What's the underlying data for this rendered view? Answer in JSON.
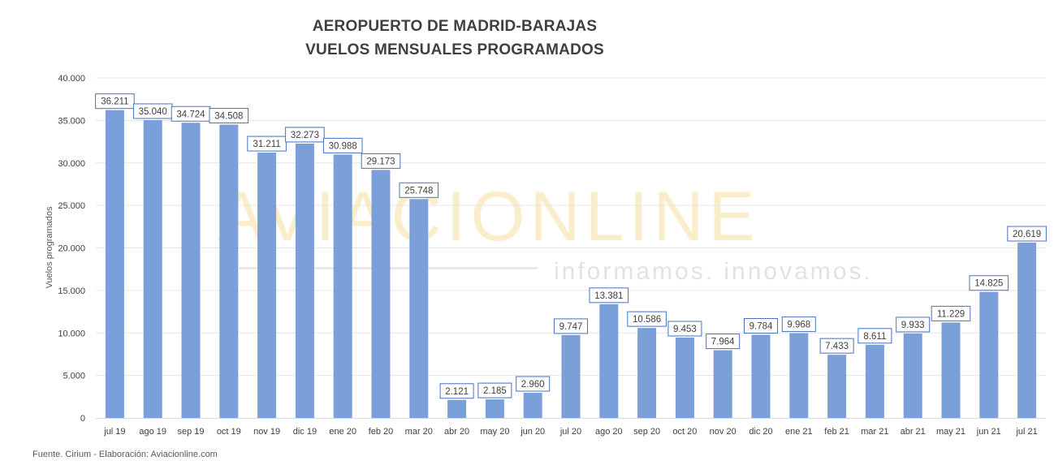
{
  "title": [
    "AEROPUERTO DE MADRID-BARAJAS",
    "VUELOS MENSUALES PROGRAMADOS"
  ],
  "source": "Fuente. Cirium - Elaboración: Aviacionline.com",
  "watermark": {
    "name": "AVIACIONLINE",
    "tagline": "informamos. innovamos."
  },
  "colors": {
    "bar": "#7b9fd8",
    "label_border": "#4472c4",
    "label_text": "#404040",
    "grid": "#e6e6e6",
    "axis_text": "#404040"
  },
  "chart_data": {
    "type": "bar",
    "ylabel": "Vuelos programados",
    "ylim": [
      0,
      40000
    ],
    "yticks": [
      0,
      5000,
      10000,
      15000,
      20000,
      25000,
      30000,
      35000,
      40000
    ],
    "ytick_labels": [
      "0",
      "5.000",
      "10.000",
      "15.000",
      "20.000",
      "25.000",
      "30.000",
      "35.000",
      "40.000"
    ],
    "grid": true,
    "categories": [
      "jul 19",
      "ago 19",
      "sep 19",
      "oct 19",
      "nov 19",
      "dic 19",
      "ene 20",
      "feb 20",
      "mar 20",
      "abr 20",
      "may 20",
      "jun 20",
      "jul 20",
      "ago 20",
      "sep 20",
      "oct 20",
      "nov 20",
      "dic 20",
      "ene 21",
      "feb 21",
      "mar 21",
      "abr 21",
      "may 21",
      "jun 21",
      "jul 21"
    ],
    "values": [
      36211,
      35040,
      34724,
      34508,
      31211,
      32273,
      30988,
      29173,
      25748,
      2121,
      2185,
      2960,
      9747,
      13381,
      10586,
      9453,
      7964,
      9784,
      9968,
      7433,
      8611,
      9933,
      11229,
      14825,
      20619
    ],
    "data_labels": [
      "36.211",
      "35.040",
      "34.724",
      "34.508",
      "31.211",
      "32.273",
      "30.988",
      "29.173",
      "25.748",
      "2.121",
      "2.185",
      "2.960",
      "9.747",
      "13.381",
      "10.586",
      "9.453",
      "7.964",
      "9.784",
      "9.968",
      "7.433",
      "8.611",
      "9.933",
      "11.229",
      "14.825",
      "20.619"
    ]
  }
}
